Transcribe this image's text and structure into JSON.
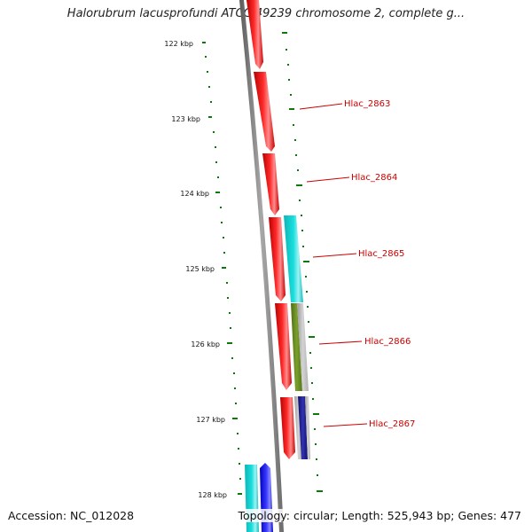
{
  "title": "Halorubrum lacusprofundi ATCC 49239 chromosome 2, complete g...",
  "accession_text": "Accession: NC_012028",
  "summary_text": "Topology: circular; Length: 525,943 bp; Genes: 477",
  "colors": {
    "backbone": "#777777",
    "tick": "#0a7a0a",
    "forward_gene": "#ff0000",
    "label": "#cc0000",
    "cyan": "#16d4d4",
    "olive": "#6b8e23",
    "gray": "#bdbdbd",
    "navy": "#1a1a8c",
    "blue": "#0000ff"
  },
  "scale": {
    "tick_labels": [
      "122 kbp",
      "123 kbp",
      "124 kbp",
      "125 kbp",
      "126 kbp",
      "127 kbp",
      "128 kbp"
    ]
  },
  "gene_labels": [
    "Hlac_2863",
    "Hlac_2864",
    "Hlac_2865",
    "Hlac_2866",
    "Hlac_2867"
  ]
}
